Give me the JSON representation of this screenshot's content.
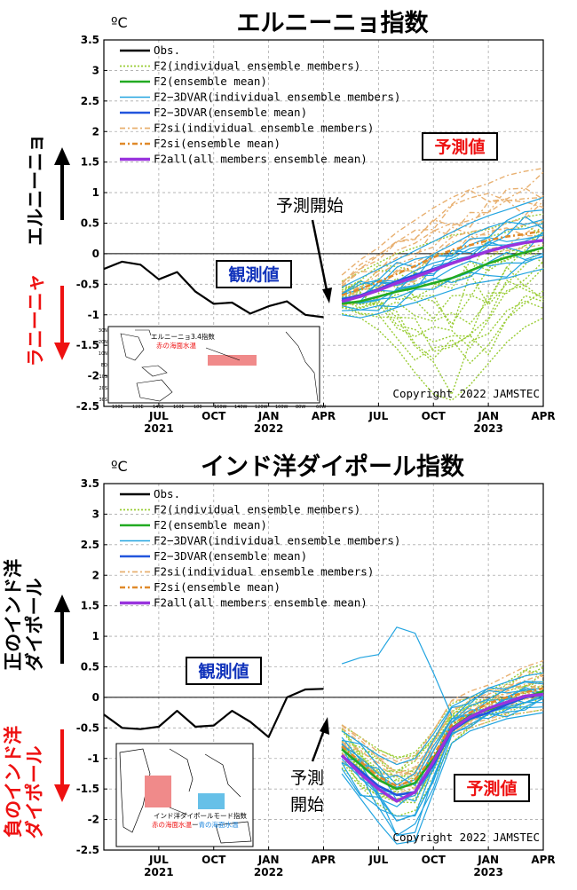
{
  "colors": {
    "obs": "#000000",
    "f2_members": "#99cc33",
    "f2_mean": "#22aa22",
    "f2_3dvar_members": "#22a4e0",
    "f2_3dvar_mean": "#2255dd",
    "f2si_members": "#e8b070",
    "f2si_mean": "#e08a2a",
    "f2all_mean": "#9933dd",
    "red_label": "#ee1111",
    "blue_label": "#1133bb",
    "box_red": "#f08a8a",
    "box_blue": "#66c0e8"
  },
  "legend": [
    {
      "key": "obs",
      "label": "Obs.",
      "style": "solid"
    },
    {
      "key": "f2_members",
      "label": "F2(individual ensemble members)",
      "style": "dotted"
    },
    {
      "key": "f2_mean",
      "label": "F2(ensemble mean)",
      "style": "solid"
    },
    {
      "key": "f2_3dvar_members",
      "label": "F2−3DVAR(individual ensemble members)",
      "style": "solid-thin"
    },
    {
      "key": "f2_3dvar_mean",
      "label": "F2−3DVAR(ensemble mean)",
      "style": "solid"
    },
    {
      "key": "f2si_members",
      "label": "F2si(individual ensemble members)",
      "style": "dashdot"
    },
    {
      "key": "f2si_mean",
      "label": "F2si(ensemble mean)",
      "style": "dashdot-thick"
    },
    {
      "key": "f2all_mean",
      "label": "F2all(all members ensemble mean)",
      "style": "solid-thick"
    }
  ],
  "chart_data": [
    {
      "type": "line",
      "title": "エルニーニョ指数",
      "unit": "ºC",
      "ylim": [
        -2.5,
        3.5
      ],
      "yticks": [
        "3.5",
        "3",
        "2.5",
        "2",
        "1.5",
        "1",
        "0.5",
        "0",
        "-0.5",
        "-1",
        "-1.5",
        "-2",
        "-2.5"
      ],
      "x_ticks": [
        {
          "month": "JUL",
          "year": "2021"
        },
        {
          "month": "OCT",
          "year": ""
        },
        {
          "month": "JAN",
          "year": "2022"
        },
        {
          "month": "APR",
          "year": ""
        },
        {
          "month": "JUL",
          "year": ""
        },
        {
          "month": "OCT",
          "year": ""
        },
        {
          "month": "JAN",
          "year": "2023"
        },
        {
          "month": "APR",
          "year": ""
        }
      ],
      "x_range_months": [
        "2021-04",
        "2023-04"
      ],
      "grid": true,
      "obs": {
        "x": [
          "2021-04",
          "2021-05",
          "2021-06",
          "2021-07",
          "2021-08",
          "2021-09",
          "2021-10",
          "2021-11",
          "2021-12",
          "2022-01",
          "2022-02",
          "2022-03",
          "2022-04"
        ],
        "y": [
          -0.25,
          -0.13,
          -0.18,
          -0.42,
          -0.3,
          -0.62,
          -0.82,
          -0.8,
          -0.98,
          -0.86,
          -0.78,
          -1.0,
          -1.04
        ]
      },
      "forecast_x": [
        "2022-05",
        "2022-06",
        "2022-07",
        "2022-08",
        "2022-09",
        "2022-10",
        "2022-11",
        "2022-12",
        "2023-01",
        "2023-02",
        "2023-03",
        "2023-04"
      ],
      "forecast_means": {
        "f2_mean": [
          -0.82,
          -0.78,
          -0.7,
          -0.62,
          -0.56,
          -0.48,
          -0.4,
          -0.28,
          -0.16,
          -0.06,
          0.02,
          0.1
        ],
        "f2_3dvar_mean": [
          -0.75,
          -0.68,
          -0.58,
          -0.45,
          -0.35,
          -0.25,
          -0.15,
          -0.05,
          0.05,
          0.12,
          0.18,
          0.22
        ],
        "f2si_mean": [
          -0.68,
          -0.58,
          -0.46,
          -0.33,
          -0.2,
          -0.06,
          0.06,
          0.14,
          0.22,
          0.28,
          0.32,
          0.38
        ],
        "f2all_mean": [
          -0.78,
          -0.7,
          -0.6,
          -0.48,
          -0.38,
          -0.27,
          -0.16,
          -0.06,
          0.04,
          0.12,
          0.18,
          0.22
        ]
      },
      "member_ranges": {
        "f2_members": {
          "count": 14,
          "lo": [
            -0.98,
            -1.05,
            -1.25,
            -1.55,
            -1.95,
            -2.3,
            -2.4,
            -2.15,
            -1.8,
            -1.45,
            -1.2,
            -1.05
          ],
          "hi": [
            -0.45,
            -0.3,
            -0.15,
            0.0,
            0.1,
            0.2,
            0.3,
            0.35,
            0.4,
            0.5,
            0.6,
            0.65
          ]
        },
        "f2_3dvar_members": {
          "count": 10,
          "lo": [
            -1.0,
            -1.05,
            -0.98,
            -0.88,
            -0.8,
            -0.7,
            -0.6,
            -0.5,
            -0.45,
            -0.4,
            -0.32,
            -0.25
          ],
          "hi": [
            -0.55,
            -0.4,
            -0.25,
            -0.1,
            0.05,
            0.2,
            0.35,
            0.5,
            0.62,
            0.72,
            0.82,
            0.92
          ]
        },
        "f2si_members": {
          "count": 9,
          "lo": [
            -0.85,
            -0.8,
            -0.72,
            -0.6,
            -0.45,
            -0.28,
            -0.15,
            -0.05,
            0.02,
            0.05,
            0.1,
            0.15
          ],
          "hi": [
            -0.35,
            -0.1,
            0.1,
            0.35,
            0.55,
            0.75,
            0.92,
            1.05,
            1.15,
            1.28,
            1.35,
            1.4
          ]
        }
      },
      "labels": {
        "observed": "観測値",
        "forecast": "予測値",
        "start": "予測開始",
        "side_up": "エルニーニョ",
        "side_down": "ラニーニャ",
        "copyright": "Copyright 2022 JAMSTEC"
      },
      "map": {
        "title": "エルニーニョ3.4指数",
        "subtitle": "赤の海面水温",
        "lat_ticks": [
          "30N",
          "20N",
          "10N",
          "EQ",
          "10S",
          "20S",
          "30S"
        ],
        "lon_ticks": [
          "100E",
          "120E",
          "140E",
          "160E",
          "180",
          "160W",
          "140W",
          "120W",
          "100W",
          "80W",
          "60W"
        ]
      }
    },
    {
      "type": "line",
      "title": "インド洋ダイポール指数",
      "unit": "ºC",
      "ylim": [
        -2.5,
        3.5
      ],
      "yticks": [
        "3.5",
        "3",
        "2.5",
        "2",
        "1.5",
        "1",
        "0.5",
        "0",
        "-0.5",
        "-1",
        "-1.5",
        "-2",
        "-2.5"
      ],
      "x_ticks": [
        {
          "month": "JUL",
          "year": "2021"
        },
        {
          "month": "OCT",
          "year": ""
        },
        {
          "month": "JAN",
          "year": "2022"
        },
        {
          "month": "APR",
          "year": ""
        },
        {
          "month": "JUL",
          "year": ""
        },
        {
          "month": "OCT",
          "year": ""
        },
        {
          "month": "JAN",
          "year": "2023"
        },
        {
          "month": "APR",
          "year": ""
        }
      ],
      "x_range_months": [
        "2021-04",
        "2023-04"
      ],
      "grid": true,
      "obs": {
        "x": [
          "2021-04",
          "2021-05",
          "2021-06",
          "2021-07",
          "2021-08",
          "2021-09",
          "2021-10",
          "2021-11",
          "2021-12",
          "2022-01",
          "2022-02",
          "2022-03",
          "2022-04"
        ],
        "y": [
          -0.28,
          -0.5,
          -0.52,
          -0.48,
          -0.22,
          -0.48,
          -0.46,
          -0.22,
          -0.4,
          -0.65,
          0.0,
          0.13,
          0.14
        ]
      },
      "forecast_x": [
        "2022-05",
        "2022-06",
        "2022-07",
        "2022-08",
        "2022-09",
        "2022-10",
        "2022-11",
        "2022-12",
        "2023-01",
        "2023-02",
        "2023-03",
        "2023-04"
      ],
      "forecast_means": {
        "f2_mean": [
          -0.85,
          -1.1,
          -1.35,
          -1.5,
          -1.4,
          -1.0,
          -0.5,
          -0.3,
          -0.2,
          -0.1,
          0.0,
          0.1
        ],
        "f2_3dvar_mean": [
          -0.95,
          -1.2,
          -1.45,
          -1.6,
          -1.55,
          -1.1,
          -0.55,
          -0.35,
          -0.25,
          -0.12,
          0.0,
          0.05
        ],
        "f2si_mean": [
          -0.8,
          -1.05,
          -1.3,
          -1.45,
          -1.35,
          -0.95,
          -0.45,
          -0.25,
          -0.1,
          0.0,
          0.08,
          0.15
        ],
        "f2all_mean": [
          -0.95,
          -1.25,
          -1.5,
          -1.7,
          -1.55,
          -1.05,
          -0.52,
          -0.32,
          -0.18,
          -0.08,
          0.02,
          0.05
        ]
      },
      "member_ranges": {
        "f2_members": {
          "count": 14,
          "lo": [
            -1.15,
            -1.45,
            -1.75,
            -1.95,
            -1.85,
            -1.35,
            -0.75,
            -0.5,
            -0.4,
            -0.3,
            -0.25,
            -0.2
          ],
          "hi": [
            -0.45,
            -0.65,
            -0.85,
            -1.0,
            -0.9,
            -0.55,
            -0.1,
            0.0,
            0.1,
            0.25,
            0.45,
            0.55
          ]
        },
        "f2_3dvar_members": {
          "count": 12,
          "lo": [
            -1.25,
            -1.65,
            -2.05,
            -2.4,
            -2.35,
            -1.55,
            -0.75,
            -0.55,
            -0.45,
            -0.35,
            -0.3,
            -0.25
          ],
          "hi": [
            -0.55,
            -0.75,
            -0.95,
            -1.1,
            -1.0,
            -0.6,
            -0.15,
            0.0,
            0.15,
            0.25,
            0.35,
            0.4
          ]
        },
        "f2si_members": {
          "count": 9,
          "lo": [
            -1.05,
            -1.3,
            -1.55,
            -1.7,
            -1.6,
            -1.15,
            -0.65,
            -0.5,
            -0.4,
            -0.3,
            -0.25,
            -0.2
          ],
          "hi": [
            -0.45,
            -0.65,
            -0.9,
            -1.05,
            -0.95,
            -0.55,
            -0.05,
            0.1,
            0.2,
            0.35,
            0.5,
            0.6
          ]
        }
      },
      "outlier": {
        "x": [
          "2022-05",
          "2022-06",
          "2022-07",
          "2022-08",
          "2022-09",
          "2022-10",
          "2022-11"
        ],
        "y": [
          0.55,
          0.65,
          0.7,
          1.15,
          1.05,
          0.4,
          -0.3
        ]
      },
      "labels": {
        "observed": "観測値",
        "forecast": "予測値",
        "start_line1": "予測",
        "start_line2": "開始",
        "side_up_line1": "正のインド洋",
        "side_up_line2": "ダイポール",
        "side_down_line1": "負のインド洋",
        "side_down_line2": "ダイポール",
        "copyright": "Copyright 2022 JAMSTEC"
      },
      "map": {
        "title": "インド洋ダイポールモード指数",
        "subtitle_red": "赤の海面水温",
        "subtitle_mid": "ー",
        "subtitle_blue": "青の海面水温"
      }
    }
  ]
}
